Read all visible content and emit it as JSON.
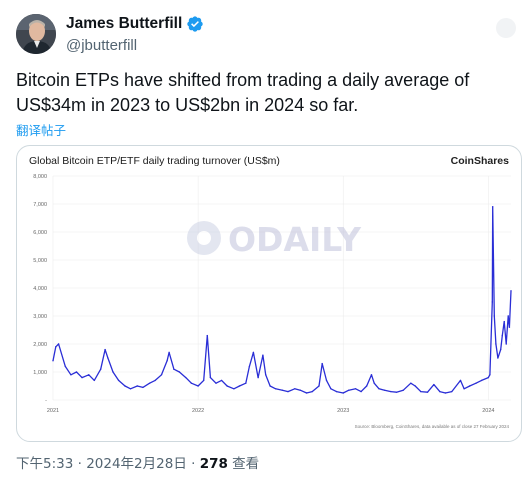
{
  "author": {
    "display_name": "James Butterfill",
    "handle": "@jbutterfill",
    "verified_icon": "verified-badge-icon"
  },
  "tweet": {
    "text": "Bitcoin ETPs have shifted from trading a daily average of US$34m in 2023 to US$2bn in 2024 so far.",
    "translate_label": "翻译帖子"
  },
  "meta": {
    "timestamp": "下午5:33 · 2024年2月28日",
    "separator": " · ",
    "views_count": "278",
    "views_label": " 查看"
  },
  "colors": {
    "accent": "#1d9bf0",
    "series": "#2a2ed6",
    "watermark": "#b9bcd8"
  },
  "watermark_text": "ODAILY",
  "chart_data": {
    "type": "line",
    "title": "Global Bitcoin ETP/ETF daily trading turnover (US$m)",
    "brand": "CoinShares",
    "source_note": "Source: Bloomberg, CoinShares, data available as of close 27 February 2024",
    "xlabel": "",
    "ylabel": "",
    "x_ticks": [
      "2021",
      "2022",
      "2023",
      "2024"
    ],
    "y_ticks": [
      "8,000",
      "7,000",
      "6,000",
      "5,000",
      "4,000",
      "3,000",
      "2,000",
      "1,000",
      "-"
    ],
    "ylim": [
      0,
      8000
    ],
    "xlim": [
      "2021-01-01",
      "2024-02-27"
    ],
    "grid": true,
    "series": [
      {
        "name": "",
        "x": [
          "2021-01-01",
          "2021-01-08",
          "2021-01-15",
          "2021-02-01",
          "2021-02-15",
          "2021-03-01",
          "2021-03-15",
          "2021-04-01",
          "2021-04-15",
          "2021-05-01",
          "2021-05-12",
          "2021-05-19",
          "2021-06-01",
          "2021-06-15",
          "2021-07-01",
          "2021-07-15",
          "2021-08-01",
          "2021-08-15",
          "2021-09-01",
          "2021-09-15",
          "2021-10-01",
          "2021-10-15",
          "2021-10-20",
          "2021-11-01",
          "2021-11-15",
          "2021-12-01",
          "2021-12-15",
          "2022-01-01",
          "2022-01-15",
          "2022-01-24",
          "2022-02-01",
          "2022-02-15",
          "2022-03-01",
          "2022-03-15",
          "2022-04-01",
          "2022-04-15",
          "2022-05-01",
          "2022-05-10",
          "2022-05-20",
          "2022-06-01",
          "2022-06-13",
          "2022-06-20",
          "2022-07-01",
          "2022-07-15",
          "2022-08-01",
          "2022-08-15",
          "2022-09-01",
          "2022-09-15",
          "2022-10-01",
          "2022-10-15",
          "2022-11-01",
          "2022-11-09",
          "2022-11-20",
          "2022-12-01",
          "2022-12-15",
          "2023-01-01",
          "2023-01-15",
          "2023-02-01",
          "2023-02-15",
          "2023-03-01",
          "2023-03-13",
          "2023-03-20",
          "2023-04-01",
          "2023-04-15",
          "2023-05-01",
          "2023-05-15",
          "2023-06-01",
          "2023-06-20",
          "2023-07-01",
          "2023-07-15",
          "2023-08-01",
          "2023-08-17",
          "2023-09-01",
          "2023-09-15",
          "2023-10-01",
          "2023-10-23",
          "2023-11-01",
          "2023-11-15",
          "2023-12-01",
          "2023-12-15",
          "2024-01-01",
          "2024-01-05",
          "2024-01-11",
          "2024-01-12",
          "2024-01-16",
          "2024-01-20",
          "2024-01-25",
          "2024-02-01",
          "2024-02-05",
          "2024-02-10",
          "2024-02-15",
          "2024-02-20",
          "2024-02-23",
          "2024-02-27"
        ],
        "y": [
          1400,
          1900,
          2000,
          1200,
          900,
          1000,
          800,
          900,
          700,
          1100,
          1800,
          1500,
          1000,
          700,
          500,
          400,
          500,
          450,
          600,
          700,
          900,
          1400,
          1700,
          1100,
          1000,
          800,
          600,
          500,
          700,
          2300,
          800,
          600,
          700,
          500,
          400,
          500,
          600,
          1200,
          1700,
          800,
          1600,
          900,
          500,
          400,
          350,
          300,
          400,
          350,
          250,
          300,
          500,
          1300,
          700,
          400,
          300,
          250,
          350,
          400,
          300,
          500,
          900,
          600,
          400,
          350,
          300,
          280,
          350,
          600,
          500,
          300,
          280,
          550,
          300,
          250,
          300,
          700,
          400,
          500,
          600,
          700,
          800,
          900,
          3500,
          6900,
          3000,
          2000,
          1500,
          1800,
          2300,
          2800,
          2000,
          3000,
          2600,
          3900
        ]
      }
    ]
  }
}
